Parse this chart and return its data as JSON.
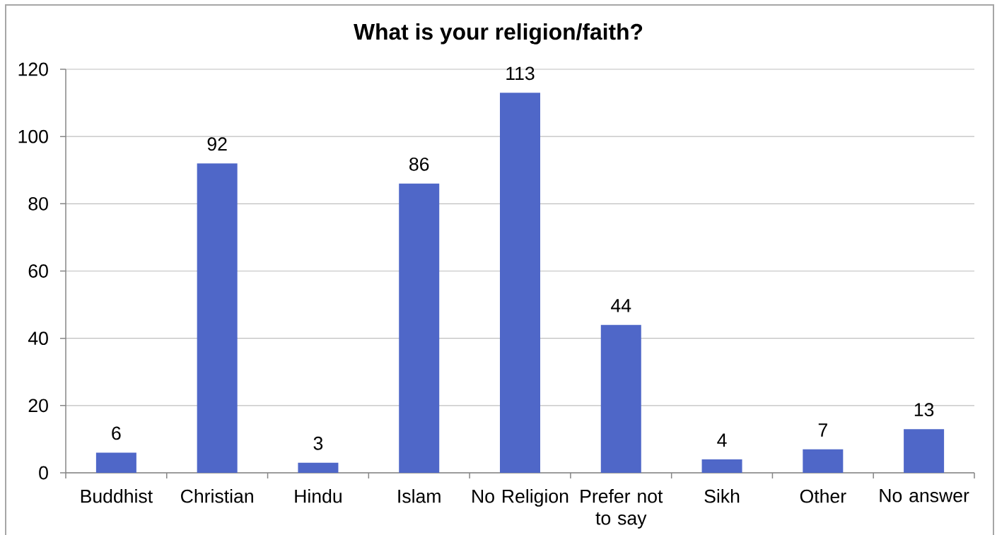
{
  "chart_data": {
    "type": "bar",
    "title": "What is your religion/faith?",
    "categories": [
      "Buddhist",
      "Christian",
      "Hindu",
      "Islam",
      "No Religion",
      "Prefer not to say",
      "Sikh",
      "Other",
      "No answer"
    ],
    "values": [
      6,
      92,
      3,
      86,
      113,
      44,
      4,
      7,
      13
    ],
    "color": "#4f67c8",
    "ylim": [
      0,
      120
    ],
    "yticks": [
      0,
      20,
      40,
      60,
      80,
      100,
      120
    ],
    "grid": "y",
    "data_labels": true
  }
}
